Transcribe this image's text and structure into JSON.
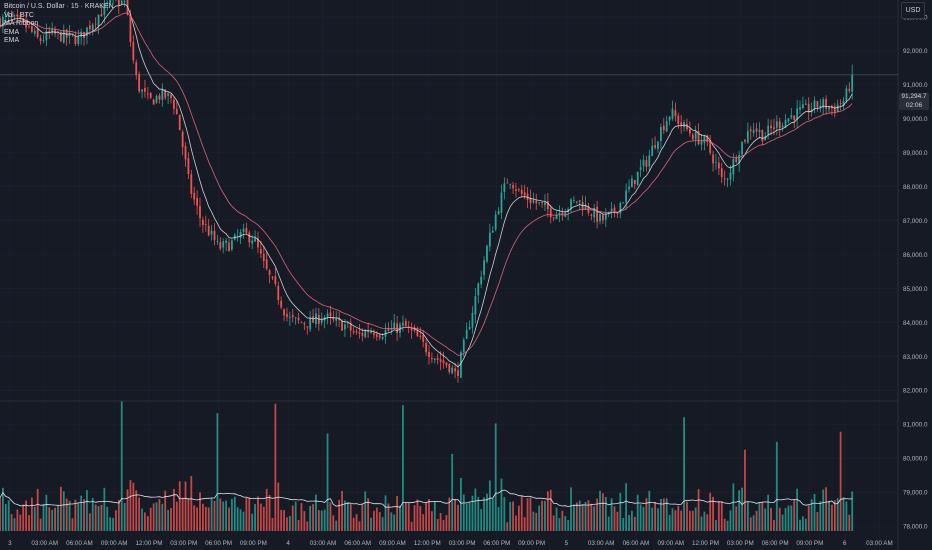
{
  "legend": {
    "title": "Bitcoin / U.S. Dollar · 15 · KRAKEN",
    "vol": "Vol · BTC",
    "ribbon": "MA Ribbon",
    "ema1": "EMA",
    "ema2": "EMA"
  },
  "currency_label": "USD",
  "last_price": {
    "value": "91,294.7",
    "countdown": "02:06"
  },
  "colors": {
    "background": "#161a25",
    "up": "#26a69a",
    "down": "#ef5350",
    "grid": "#1f2330",
    "text": "#b2b5be",
    "ema_fast": "#e0e3eb",
    "ema_slow": "#f06a82",
    "volume_ma": "#e0e3eb"
  },
  "chart_data": {
    "type": "candlestick",
    "symbol": "Bitcoin / U.S. Dollar",
    "interval": "15",
    "exchange": "KRAKEN",
    "y_ticks": [
      "93,000.0",
      "92,000.0",
      "91,000.0",
      "90,000.0",
      "89,000.0",
      "88,000.0",
      "87,000.0",
      "86,000.0",
      "85,000.0",
      "84,000.0",
      "83,000.0",
      "82,000.0",
      "81,000.0",
      "80,000.0",
      "79,000.0",
      "78,000.0"
    ],
    "ylim": [
      77300,
      93500
    ],
    "x_ticks": [
      "3",
      "03:00 AM",
      "06:00 AM",
      "09:00 AM",
      "12:00 PM",
      "03:00 PM",
      "06:00 PM",
      "09:00 PM",
      "4",
      "03:00 AM",
      "06:00 AM",
      "09:00 AM",
      "12:00 PM",
      "03:00 PM",
      "06:00 PM",
      "09:00 PM",
      "5",
      "03:00 AM",
      "06:00 AM",
      "09:00 AM",
      "12:00 PM",
      "03:00 PM",
      "06:00 PM",
      "09:00 PM",
      "6",
      "03:00 AM"
    ],
    "tick_values_hours": [
      0,
      3,
      6,
      9,
      12,
      15,
      18,
      21,
      24,
      27,
      30,
      33,
      36,
      39,
      42,
      45,
      48,
      51,
      54,
      57,
      60,
      63,
      66,
      69,
      72,
      75
    ],
    "xlim_hours": [
      -0.85,
      76.6
    ],
    "price_path_keyframes": [
      [
        -1,
        92900
      ],
      [
        0,
        92950
      ],
      [
        1.5,
        92700
      ],
      [
        2.5,
        92300
      ],
      [
        3.5,
        92500
      ],
      [
        5,
        92400
      ],
      [
        6,
        92350
      ],
      [
        7,
        92800
      ],
      [
        8,
        93200
      ],
      [
        9,
        93500
      ],
      [
        10,
        93400
      ],
      [
        10.5,
        92000
      ],
      [
        11,
        91000
      ],
      [
        12,
        90500
      ],
      [
        13,
        90700
      ],
      [
        14,
        90600
      ],
      [
        14.5,
        90000
      ],
      [
        15.5,
        88000
      ],
      [
        16.5,
        87000
      ],
      [
        17.5,
        86500
      ],
      [
        18,
        86200
      ],
      [
        19,
        86300
      ],
      [
        20,
        86600
      ],
      [
        21,
        86500
      ],
      [
        22,
        85600
      ],
      [
        23,
        84900
      ],
      [
        24,
        84100
      ],
      [
        25,
        84000
      ],
      [
        26,
        84000
      ],
      [
        27,
        84200
      ],
      [
        28,
        84000
      ],
      [
        29,
        83900
      ],
      [
        30,
        83600
      ],
      [
        31,
        83800
      ],
      [
        32,
        83700
      ],
      [
        33,
        83800
      ],
      [
        34,
        83900
      ],
      [
        35,
        83600
      ],
      [
        36,
        83200
      ],
      [
        37,
        82900
      ],
      [
        38,
        82700
      ],
      [
        38.5,
        82400
      ],
      [
        39,
        83100
      ],
      [
        40,
        84500
      ],
      [
        41,
        86000
      ],
      [
        42,
        87300
      ],
      [
        43,
        88300
      ],
      [
        44,
        87800
      ],
      [
        45,
        87600
      ],
      [
        46,
        87400
      ],
      [
        47,
        87200
      ],
      [
        48,
        87400
      ],
      [
        49,
        87600
      ],
      [
        50,
        87300
      ],
      [
        51,
        87000
      ],
      [
        52,
        87200
      ],
      [
        53,
        87700
      ],
      [
        54,
        88300
      ],
      [
        55,
        88800
      ],
      [
        56,
        89600
      ],
      [
        57,
        90200
      ],
      [
        58,
        89800
      ],
      [
        59,
        89500
      ],
      [
        60,
        89300
      ],
      [
        61,
        88600
      ],
      [
        61.5,
        88100
      ],
      [
        62,
        88400
      ],
      [
        63,
        89200
      ],
      [
        64,
        89800
      ],
      [
        65,
        89500
      ],
      [
        66,
        89800
      ],
      [
        67,
        90000
      ],
      [
        68,
        90200
      ],
      [
        69,
        90300
      ],
      [
        70,
        90450
      ],
      [
        71,
        90300
      ],
      [
        72,
        90550
      ],
      [
        72.7,
        91300
      ]
    ],
    "last_price": 91294.7,
    "series": [
      {
        "name": "EMA",
        "color": "#e0e3eb"
      },
      {
        "name": "EMA",
        "color": "#f06a82"
      }
    ],
    "volume": {
      "name": "Vol · BTC",
      "ma_line": true,
      "spikes_hours": [
        9.7,
        17.8,
        23.0,
        27.5,
        33.9,
        38.1,
        41.8,
        58.1,
        63.4,
        66.2,
        71.6
      ]
    }
  }
}
